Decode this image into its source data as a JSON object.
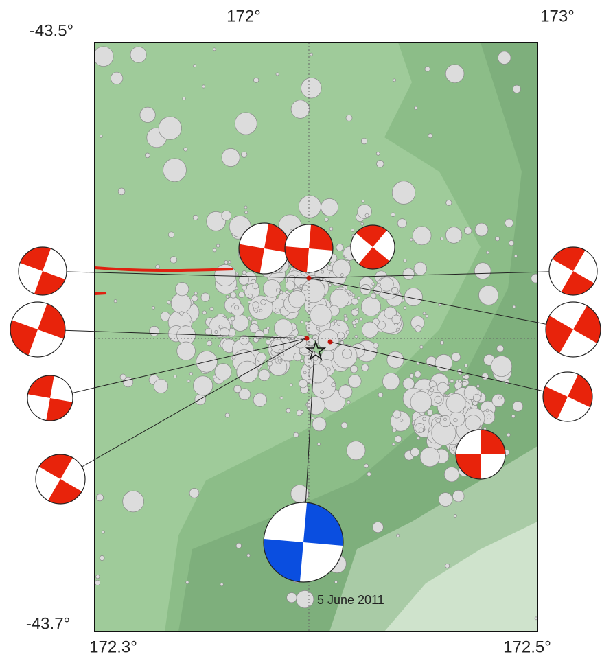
{
  "axes": {
    "top_labels": [
      "172°",
      "173°"
    ],
    "left_labels": [
      "-43.5°",
      "-43.7°"
    ],
    "bottom_labels": [
      "172.3°",
      "172.5°"
    ]
  },
  "annotation": "5 June 2011"
}
